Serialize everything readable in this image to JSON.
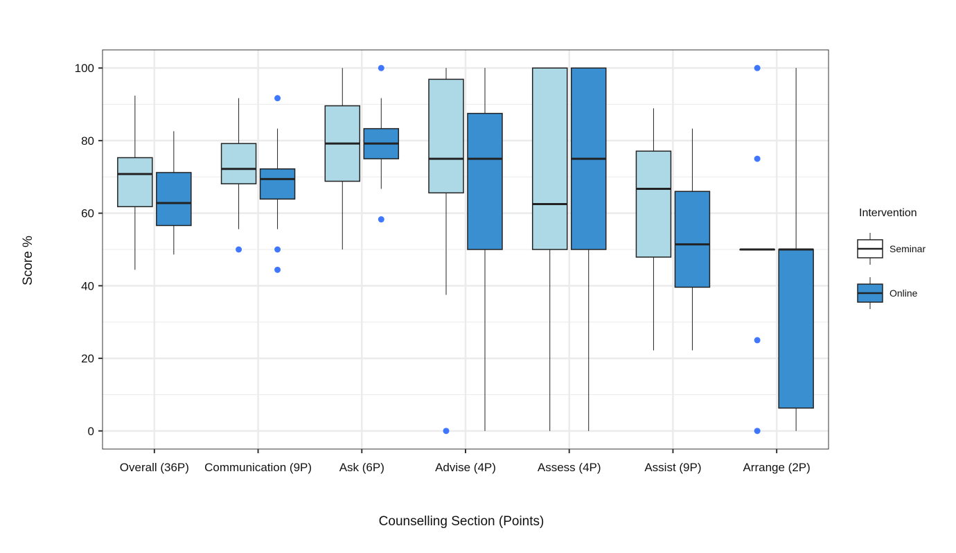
{
  "chart_data": {
    "type": "box",
    "xlabel": "Counselling Section (Points)",
    "ylabel": "Score %",
    "ylim": [
      -5,
      105
    ],
    "yticks": [
      0,
      20,
      40,
      60,
      80,
      100
    ],
    "y_tick_labels": [
      "0",
      "20",
      "40",
      "60",
      "80",
      "100"
    ],
    "grid": true,
    "legend": {
      "title": "Intervention",
      "position": "right"
    },
    "categories": [
      "Overall (36P)",
      "Communication (9P)",
      "Ask (6P)",
      "Advise (4P)",
      "Assess (4P)",
      "Assist (9P)",
      "Arrange (2P)"
    ],
    "series": [
      {
        "name": "Seminar",
        "color": "#add8e6",
        "boxes": [
          {
            "whisker_low": 44.4,
            "q1": 61.8,
            "median": 70.8,
            "q3": 75.3,
            "whisker_high": 92.4,
            "outliers": []
          },
          {
            "whisker_low": 55.6,
            "q1": 68.1,
            "median": 72.2,
            "q3": 79.2,
            "whisker_high": 91.7,
            "outliers": [
              50.0
            ]
          },
          {
            "whisker_low": 50.0,
            "q1": 68.8,
            "median": 79.2,
            "q3": 89.6,
            "whisker_high": 100.0,
            "outliers": []
          },
          {
            "whisker_low": 37.5,
            "q1": 65.6,
            "median": 75.0,
            "q3": 96.9,
            "whisker_high": 100.0,
            "outliers": [
              0.0
            ]
          },
          {
            "whisker_low": 0.0,
            "q1": 50.0,
            "median": 62.5,
            "q3": 100.0,
            "whisker_high": 100.0,
            "outliers": []
          },
          {
            "whisker_low": 22.2,
            "q1": 47.9,
            "median": 66.7,
            "q3": 77.1,
            "whisker_high": 88.9,
            "outliers": []
          },
          {
            "whisker_low": 50.0,
            "q1": 50.0,
            "median": 50.0,
            "q3": 50.0,
            "whisker_high": 50.0,
            "outliers": [
              0.0,
              25.0,
              75.0,
              100.0
            ]
          }
        ]
      },
      {
        "name": "Online",
        "color": "#3a8fd1",
        "boxes": [
          {
            "whisker_low": 48.6,
            "q1": 56.6,
            "median": 62.8,
            "q3": 71.2,
            "whisker_high": 82.6,
            "outliers": []
          },
          {
            "whisker_low": 55.6,
            "q1": 63.9,
            "median": 69.4,
            "q3": 72.2,
            "whisker_high": 83.3,
            "outliers": [
              44.4,
              50.0,
              91.7
            ]
          },
          {
            "whisker_low": 66.7,
            "q1": 75.0,
            "median": 79.2,
            "q3": 83.3,
            "whisker_high": 91.7,
            "outliers": [
              58.3,
              100.0
            ]
          },
          {
            "whisker_low": 0.0,
            "q1": 50.0,
            "median": 75.0,
            "q3": 87.5,
            "whisker_high": 100.0,
            "outliers": []
          },
          {
            "whisker_low": 0.0,
            "q1": 50.0,
            "median": 75.0,
            "q3": 100.0,
            "whisker_high": 100.0,
            "outliers": []
          },
          {
            "whisker_low": 22.2,
            "q1": 39.6,
            "median": 51.4,
            "q3": 66.0,
            "whisker_high": 83.3,
            "outliers": []
          },
          {
            "whisker_low": 0.0,
            "q1": 6.3,
            "median": 50.0,
            "q3": 50.0,
            "whisker_high": 100.0,
            "outliers": []
          }
        ]
      }
    ]
  },
  "colors": {
    "outlier": "#1f5fff",
    "grid": "#ebebeb",
    "box_stroke": "#222222"
  }
}
